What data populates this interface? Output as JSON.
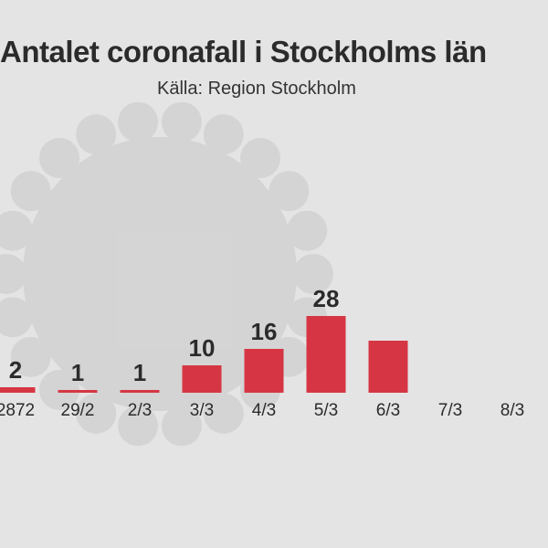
{
  "chart_data": {
    "type": "bar",
    "title": "Antalet coronafall i Stockholms län",
    "subtitle": "Källa: Region Stockholm",
    "categories": [
      "2872",
      "29/2",
      "2/3",
      "3/3",
      "4/3",
      "5/3",
      "6/3",
      "7/3",
      "8/3"
    ],
    "values": [
      2,
      1,
      1,
      10,
      16,
      28,
      19,
      null,
      null
    ],
    "value_labels": [
      "2",
      "1",
      "1",
      "10",
      "16",
      "28",
      "",
      "",
      ""
    ],
    "ylim": [
      0,
      30
    ],
    "grid": false,
    "bar_color": "#d63643",
    "background_color": "#e4e4e4"
  }
}
